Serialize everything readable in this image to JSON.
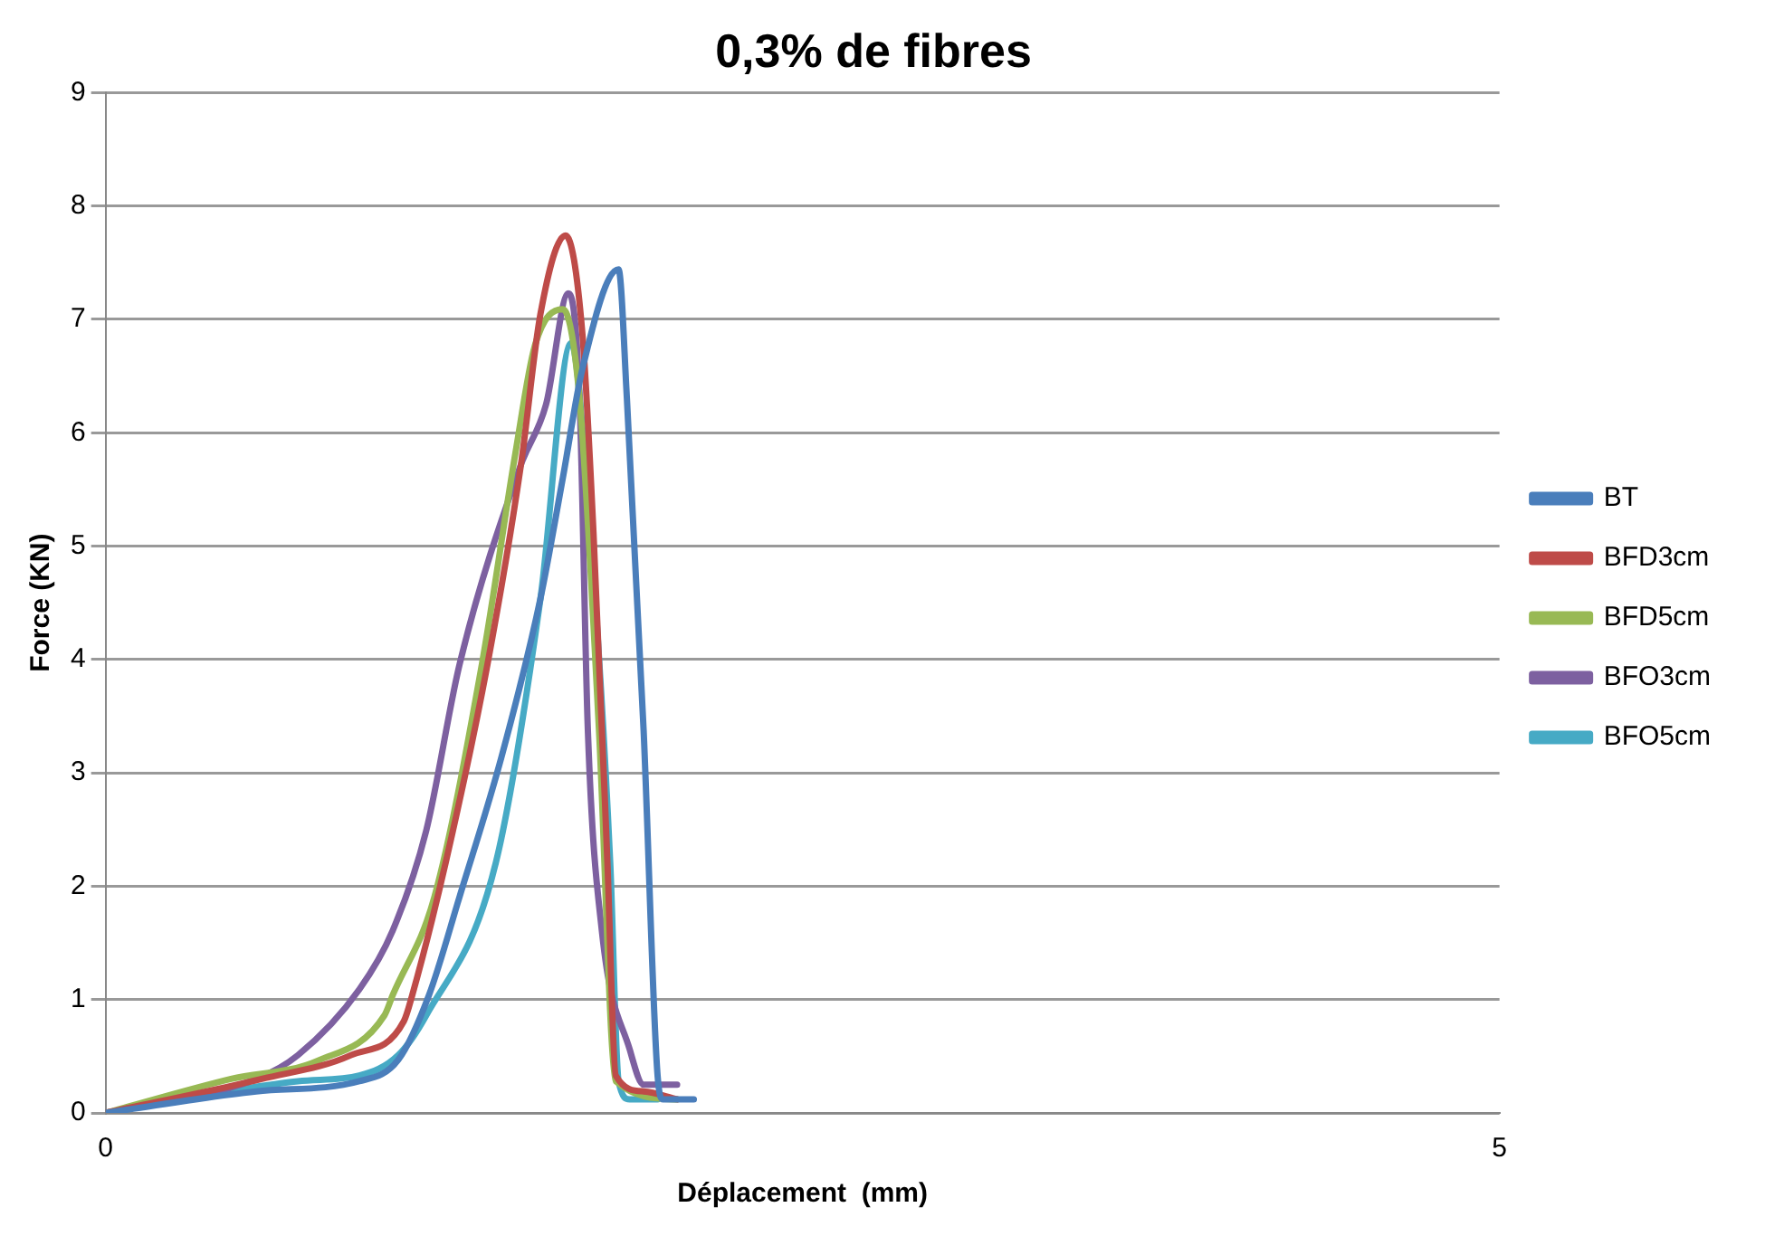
{
  "chart_data": {
    "type": "line",
    "title": "0,3% de fibres",
    "xlabel": "Déplacement  (mm)",
    "ylabel": "Force (KN)",
    "xlim": [
      0,
      5
    ],
    "xticks": [
      0,
      5
    ],
    "ylim": [
      0,
      9
    ],
    "yticks": [
      0,
      1,
      2,
      3,
      4,
      5,
      6,
      7,
      8,
      9
    ],
    "grid": "y",
    "legend": "right",
    "marker": "none",
    "line_style": "solid",
    "series": [
      {
        "name": "BT",
        "color": "#4a7ebb",
        "x": [
          0,
          0.54,
          0.91,
          1.05,
          1.16,
          1.27,
          1.42,
          1.56,
          1.64,
          1.71,
          1.84,
          1.87,
          1.93,
          1.98,
          2.0,
          2.11
        ],
        "values": [
          0,
          0.19,
          0.28,
          0.47,
          1.04,
          1.91,
          3.14,
          4.54,
          5.6,
          6.56,
          7.44,
          6.3,
          3.37,
          0.33,
          0.12,
          0.12
        ]
      },
      {
        "name": "BFD3cm",
        "color": "#be4b48",
        "x": [
          0,
          0.56,
          0.88,
          1.07,
          1.1,
          1.22,
          1.37,
          1.49,
          1.56,
          1.65,
          1.71,
          1.75,
          1.8,
          1.83,
          1.93,
          2.05
        ],
        "values": [
          0,
          0.3,
          0.51,
          0.81,
          1.04,
          2.21,
          3.96,
          5.72,
          7.05,
          7.74,
          6.88,
          5.12,
          2.21,
          0.33,
          0.19,
          0.12
        ]
      },
      {
        "name": "BFD5cm",
        "color": "#98b954",
        "x": [
          0,
          0.45,
          0.76,
          1.0,
          1.03,
          1.18,
          1.35,
          1.47,
          1.54,
          1.64,
          1.7,
          1.77,
          1.83,
          2.05
        ],
        "values": [
          0,
          0.3,
          0.46,
          0.86,
          1.04,
          1.91,
          3.96,
          5.82,
          6.77,
          7.09,
          6.3,
          3.37,
          0.28,
          0.12
        ]
      },
      {
        "name": "BFO3cm",
        "color": "#7d60a0",
        "x": [
          0,
          0.54,
          0.69,
          0.91,
          1.03,
          1.15,
          1.27,
          1.49,
          1.58,
          1.66,
          1.7,
          1.73,
          1.78,
          1.88,
          1.93,
          2.05
        ],
        "values": [
          0,
          0.3,
          0.51,
          1.09,
          1.61,
          2.49,
          3.96,
          5.72,
          6.25,
          7.23,
          6.3,
          3.37,
          1.61,
          0.56,
          0.25,
          0.25
        ]
      },
      {
        "name": "BFO5cm",
        "color": "#46aac5",
        "x": [
          0,
          0.69,
          0.91,
          1.05,
          1.15,
          1.4,
          1.56,
          1.67,
          1.73,
          1.81,
          1.84,
          1.88,
          1.98
        ],
        "values": [
          0,
          0.28,
          0.33,
          0.51,
          0.86,
          2.21,
          4.54,
          6.79,
          5.42,
          2.21,
          0.28,
          0.12,
          0.12
        ]
      }
    ]
  }
}
